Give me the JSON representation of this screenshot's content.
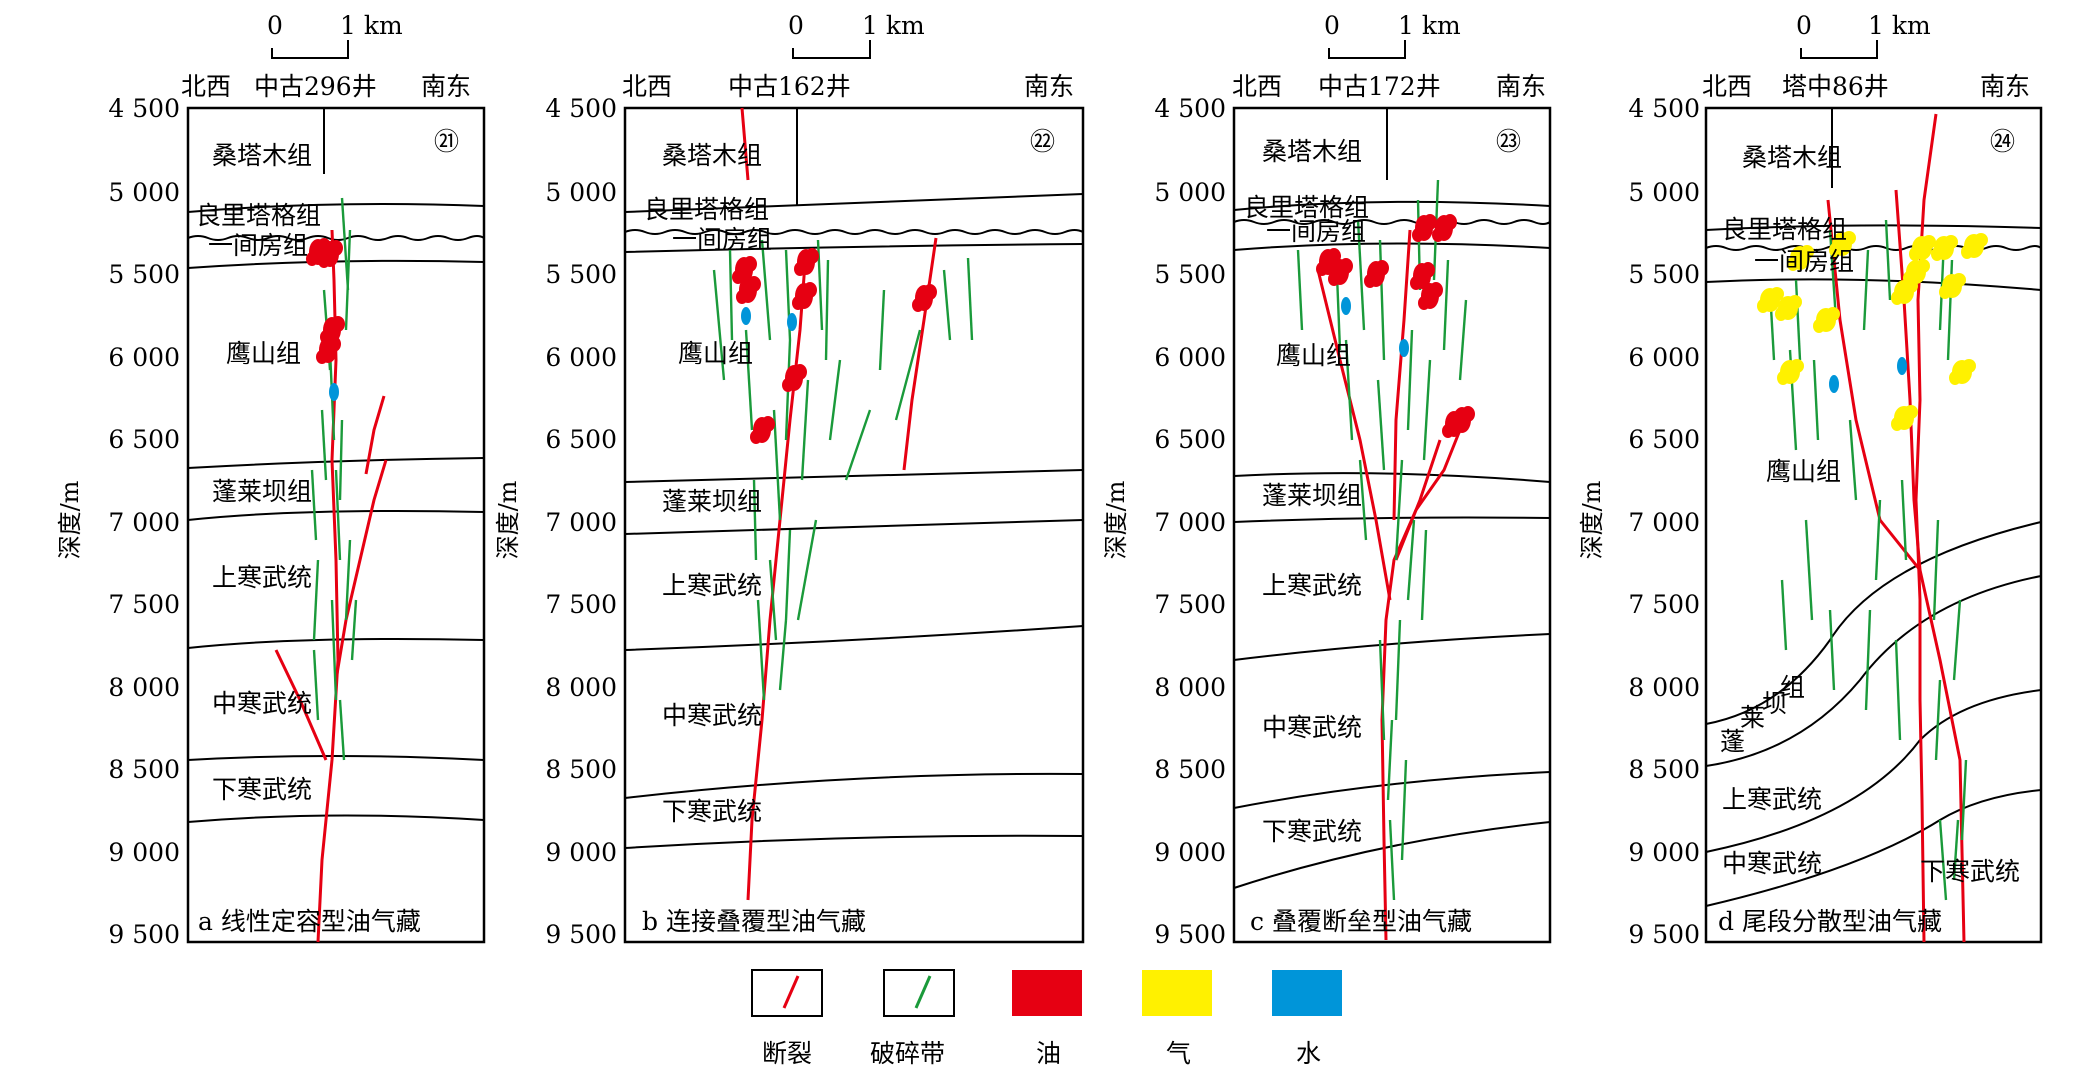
{
  "depth_ticks": [
    "4 500",
    "5 000",
    "5 500",
    "6 000",
    "6 500",
    "7 000",
    "7 500",
    "8 000",
    "8 500",
    "9 000",
    "9 500"
  ],
  "axis_label": "深度/m",
  "scale": {
    "zero": "0",
    "one": "1 km"
  },
  "nw_label": "北西",
  "se_label": "南东",
  "panels": [
    {
      "well": "中古296井",
      "number": "㉑",
      "caption": "a 线性定容型油气藏",
      "formations": [
        "桑塔木组",
        "良里塔格组",
        "一间房组",
        "鹰山组",
        "蓬莱坝组",
        "上寒武统",
        "中寒武统",
        "下寒武统"
      ]
    },
    {
      "well": "中古162井",
      "number": "㉒",
      "caption": "b 连接叠覆型油气藏",
      "formations": [
        "桑塔木组",
        "良里塔格组",
        "一间房组",
        "鹰山组",
        "蓬莱坝组",
        "上寒武统",
        "中寒武统",
        "下寒武统"
      ]
    },
    {
      "well": "中古172井",
      "number": "㉓",
      "caption": "c 叠覆断垒型油气藏",
      "formations": [
        "桑塔木组",
        "良里塔格组",
        "一间房组",
        "鹰山组",
        "蓬莱坝组",
        "上寒武统",
        "中寒武统",
        "下寒武统"
      ]
    },
    {
      "well": "塔中86井",
      "number": "㉔",
      "caption": "d 尾段分散型油气藏",
      "formations": [
        "桑塔木组",
        "良里塔格组",
        "一间房组",
        "鹰山组",
        "蓬",
        "莱",
        "坝",
        "组",
        "上寒武统",
        "中寒武统",
        "下寒武统"
      ]
    }
  ],
  "legend": [
    {
      "label": "断裂",
      "icon": "red-line-icon"
    },
    {
      "label": "破碎带",
      "icon": "green-line-icon"
    },
    {
      "label": "油",
      "color": "#e60012"
    },
    {
      "label": "气",
      "color": "#fff100"
    },
    {
      "label": "水",
      "color": "#0095d9"
    }
  ]
}
